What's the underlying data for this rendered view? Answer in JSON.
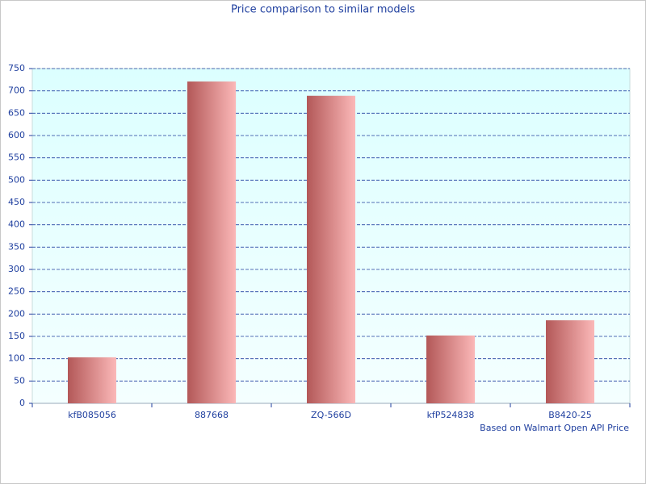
{
  "chart_data": {
    "type": "bar",
    "title": "Price comparison to similar models",
    "annotation": "Based on Walmart Open API Price",
    "categories": [
      "kfB085056",
      "887668",
      "ZQ-566D",
      "kfP524838",
      "B8420-25"
    ],
    "values": [
      103,
      721,
      689,
      152,
      186
    ],
    "color": "#b35858",
    "ylim": [
      0,
      750
    ],
    "yticks": [
      0,
      50,
      100,
      150,
      200,
      250,
      300,
      350,
      400,
      450,
      500,
      550,
      600,
      650,
      700,
      750
    ],
    "grid": true
  }
}
